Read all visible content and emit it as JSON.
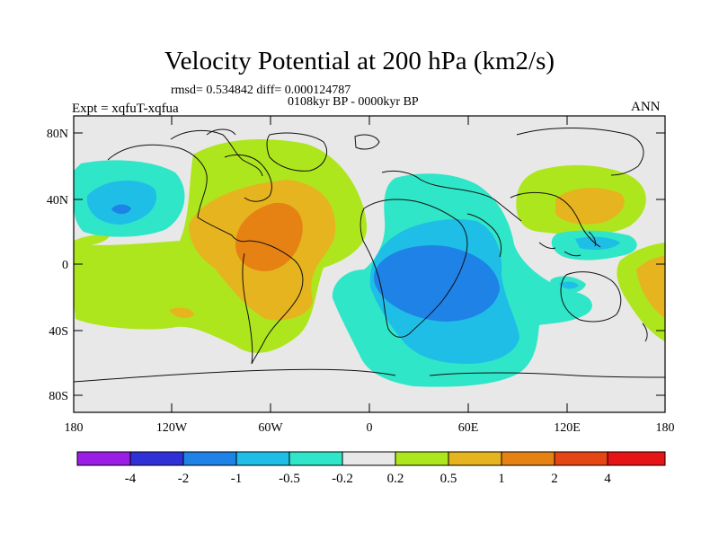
{
  "title": "Velocity Potential at 200 hPa (km2/s)",
  "stats_line": "rmsd= 0.534842  diff= 0.000124787",
  "period_line": "0108kyr BP - 0000kyr BP",
  "experiment_label": "Expt = xqfuT-xqfua",
  "season_label": "ANN",
  "lat_labels": [
    "80N",
    "40N",
    "0",
    "40S",
    "80S"
  ],
  "lon_labels": [
    "180",
    "120W",
    "60W",
    "0",
    "60E",
    "120E",
    "180"
  ],
  "colorbar": {
    "colors": [
      "#9b1ee6",
      "#3030d8",
      "#1e82e6",
      "#1ebee6",
      "#30e6c8",
      "#e8e8e8",
      "#aee61e",
      "#e6b41e",
      "#e68214",
      "#e64614",
      "#e61414"
    ],
    "labels": [
      "-4",
      "-2",
      "-1",
      "-0.5",
      "-0.2",
      "0.2",
      "0.5",
      "1",
      "2",
      "4"
    ]
  },
  "palette": {
    "background": "#e8e8e8",
    "neg_weak": "#30e6c8",
    "neg_mid": "#1ebee6",
    "neg_strong": "#1e82e6",
    "pos_weak": "#aee61e",
    "pos_mid": "#e6b41e",
    "pos_strong": "#e68214"
  }
}
